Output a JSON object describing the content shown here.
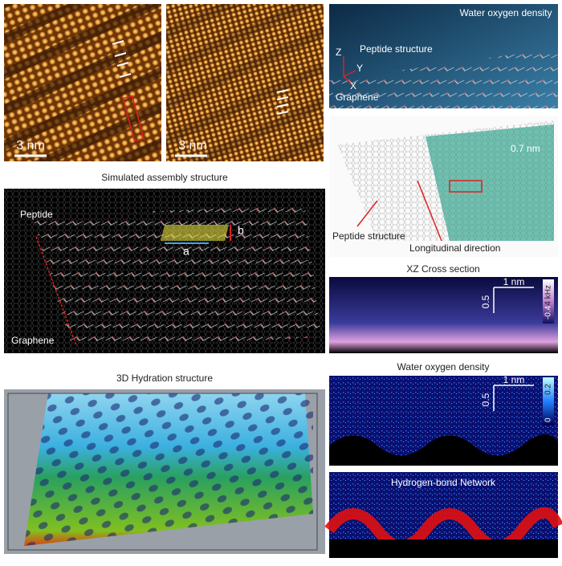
{
  "panels": {
    "afm_1": {
      "scale_bar": "3 nm"
    },
    "afm_2": {
      "scale_bar": "3 nm"
    },
    "md_snapshot": {
      "title": "Water oxygen density",
      "label": "Peptide structure",
      "axes": [
        "Z",
        "Y",
        "X"
      ],
      "substrate": "Graphene"
    },
    "simulated": {
      "title": "Simulated assembly structure",
      "peptide": "Peptide",
      "lattice": [
        "b",
        "a"
      ],
      "substrate": "Graphene"
    },
    "density_map": {
      "distance": "0.7 nm",
      "label": "Peptide structure",
      "direction": "Longitudinal direction"
    },
    "xz_section": {
      "title": "XZ Cross section",
      "scale_x": "1 nm",
      "scale_z": "0.5",
      "colorbar": [
        "4 kHz",
        "-0.4"
      ]
    },
    "water_density": {
      "title": "Water oxygen density",
      "scale_x": "1 nm",
      "scale_z": "0.5",
      "colorbar": [
        "0.2",
        "0"
      ]
    },
    "hydration_3d": {
      "title": "3D Hydration structure"
    },
    "hbond": {
      "title": "Hydrogen-bond Network"
    }
  }
}
